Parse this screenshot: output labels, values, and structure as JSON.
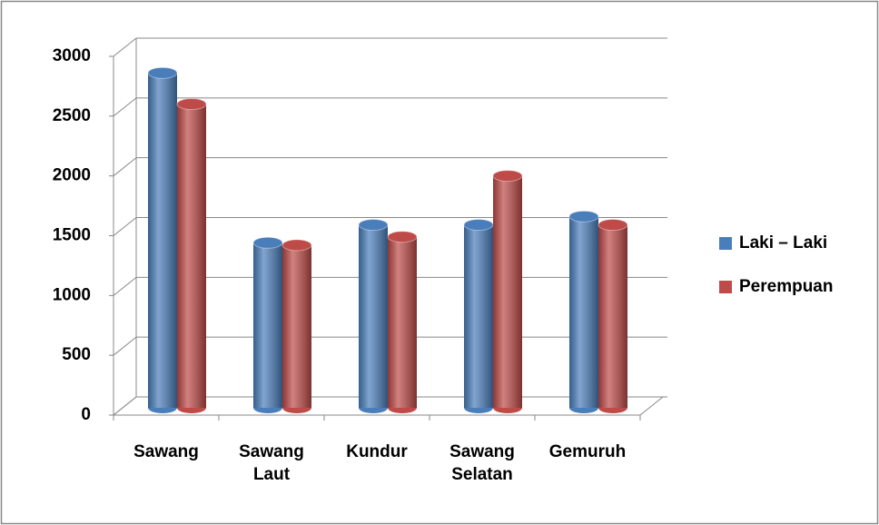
{
  "chart_data": {
    "type": "bar",
    "categories": [
      "Sawang",
      "Sawang Laut",
      "Kundur",
      "Sawang Selatan",
      "Gemuruh"
    ],
    "series": [
      {
        "name": "Laki – Laki",
        "color": "#4a7ebb",
        "values": [
          2800,
          1380,
          1530,
          1530,
          1600
        ]
      },
      {
        "name": "Perempuan",
        "color": "#be4b48",
        "values": [
          2540,
          1360,
          1430,
          1940,
          1530
        ]
      }
    ],
    "ylim": [
      0,
      3000
    ],
    "yticks": [
      0,
      500,
      1000,
      1500,
      2000,
      2500,
      3000
    ],
    "grid": true,
    "legend": "right"
  }
}
